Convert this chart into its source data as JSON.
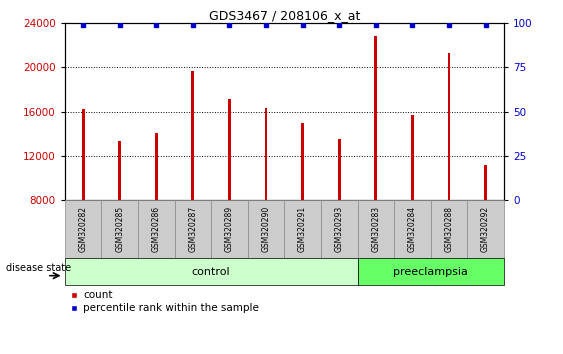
{
  "title": "GDS3467 / 208106_x_at",
  "samples": [
    "GSM320282",
    "GSM320285",
    "GSM320286",
    "GSM320287",
    "GSM320289",
    "GSM320290",
    "GSM320291",
    "GSM320293",
    "GSM320283",
    "GSM320284",
    "GSM320288",
    "GSM320292"
  ],
  "counts": [
    16200,
    13300,
    14100,
    19700,
    17100,
    16300,
    15000,
    13500,
    22800,
    15700,
    21300,
    11200
  ],
  "percentiles": [
    99,
    99,
    99,
    99,
    99,
    99,
    99,
    99,
    99,
    99,
    99,
    99
  ],
  "ylim_left": [
    8000,
    24000
  ],
  "ylim_right": [
    0,
    100
  ],
  "yticks_left": [
    8000,
    12000,
    16000,
    20000,
    24000
  ],
  "yticks_right": [
    0,
    25,
    50,
    75,
    100
  ],
  "bar_color": "#cc0000",
  "percentile_color": "#0000cc",
  "control_count": 8,
  "preeclampsia_count": 4,
  "control_label": "control",
  "preeclampsia_label": "preeclampsia",
  "disease_state_label": "disease state",
  "control_bg": "#ccffcc",
  "preeclampsia_bg": "#66ff66",
  "sample_bg": "#cccccc",
  "legend_count_label": "count",
  "legend_percentile_label": "percentile rank within the sample",
  "bar_width": 0.08
}
